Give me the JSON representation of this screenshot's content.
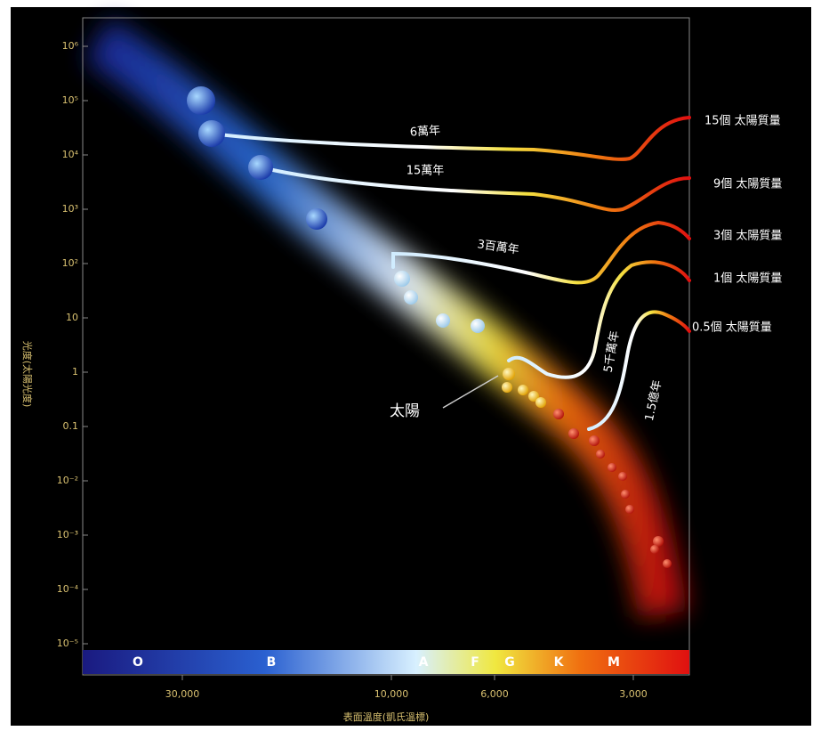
{
  "title_axis": {
    "y_label": "光度(太陽光度)",
    "x_label": "表面溫度(凱氏溫標)"
  },
  "y_ticks": [
    "10⁶",
    "10⁵",
    "10⁴",
    "10³",
    "10²",
    "10",
    "1",
    "0.1",
    "10⁻²",
    "10⁻³",
    "10⁻⁴",
    "10⁻⁵"
  ],
  "x_ticks": [
    "30,000",
    "10,000",
    "6,000",
    "3,000"
  ],
  "spectral_classes": [
    "O",
    "B",
    "A",
    "F",
    "G",
    "K",
    "M"
  ],
  "tracks": [
    {
      "mass": "15個 太陽質量",
      "time": "6萬年"
    },
    {
      "mass": "9個 太陽質量",
      "time": "15萬年"
    },
    {
      "mass": "3個 太陽質量",
      "time": "3百萬年"
    },
    {
      "mass": "1個 太陽質量",
      "time": "5千萬年"
    },
    {
      "mass": "0.5個 太陽質量",
      "time": "1.5億年"
    }
  ],
  "sun_label": "太陽"
}
